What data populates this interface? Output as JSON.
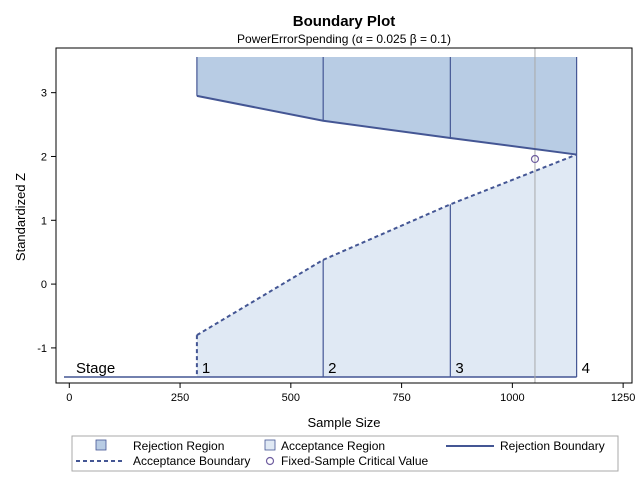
{
  "chart_data": {
    "type": "area",
    "title": "Boundary Plot",
    "subtitle": "PowerErrorSpending (α = 0.025  β = 0.1)",
    "xlabel": "Sample Size",
    "ylabel": "Standardized Z",
    "xlim": [
      -30,
      1270
    ],
    "ylim": [
      -1.55,
      3.7
    ],
    "x_ticks": [
      0,
      250,
      500,
      750,
      1000,
      1250
    ],
    "x_tick_labels": [
      "0",
      "250",
      "500",
      "750",
      "1000",
      "1250"
    ],
    "y_ticks": [
      -1,
      0,
      1,
      2,
      3
    ],
    "y_tick_labels": [
      "-1",
      "0",
      "1",
      "2",
      "3"
    ],
    "stage_title": "Stage",
    "stages": [
      {
        "label": "1",
        "sample_size": 288
      },
      {
        "label": "2",
        "sample_size": 573
      },
      {
        "label": "3",
        "sample_size": 860
      },
      {
        "label": "4",
        "sample_size": 1145
      }
    ],
    "series": [
      {
        "name": "Rejection Boundary",
        "x": [
          288,
          573,
          860,
          1145
        ],
        "y": [
          2.95,
          2.56,
          2.29,
          2.03
        ]
      },
      {
        "name": "Acceptance Boundary",
        "x": [
          288,
          573,
          860,
          1145
        ],
        "y": [
          -0.8,
          0.38,
          1.25,
          2.03
        ]
      }
    ],
    "fixed_sample": {
      "name": "Fixed-Sample Critical Value",
      "x": 1051,
      "y": 1.96
    },
    "legend_position": "bottom",
    "grid": false,
    "colors": {
      "rejection_fill": "#b8cce4",
      "acceptance_fill": "#e0e9f4",
      "boundary_line": "#445694",
      "stage_line": "#445694",
      "reference_line": "#a9a9a9",
      "marker": "#6f5ea0"
    }
  },
  "legend": {
    "items": [
      {
        "label": "Rejection Region",
        "symbol": "rejection-swatch"
      },
      {
        "label": "Acceptance Region",
        "symbol": "acceptance-swatch"
      },
      {
        "label": "Rejection Boundary",
        "symbol": "solid-line"
      },
      {
        "label": "Acceptance Boundary",
        "symbol": "dashed-line"
      },
      {
        "label": "Fixed-Sample Critical Value",
        "symbol": "circle-marker"
      }
    ]
  }
}
